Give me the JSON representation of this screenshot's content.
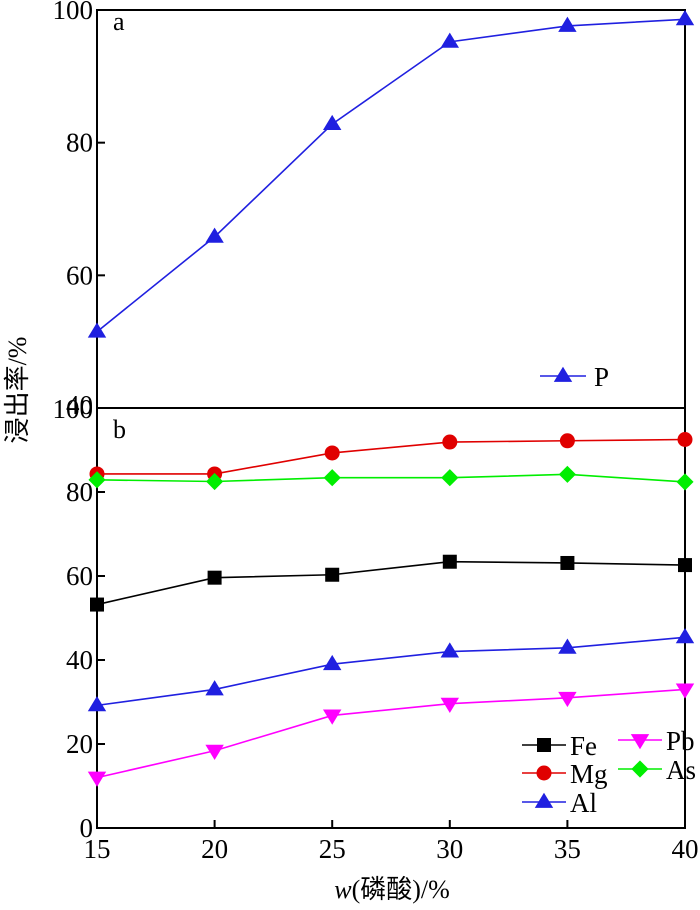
{
  "chart_data": {
    "type": "line",
    "ylabel": "浸出率/%",
    "xlabel_italic": "w",
    "xlabel_rest": "(磷酸)/%",
    "x": [
      15,
      20,
      25,
      30,
      35,
      40
    ],
    "x_ticks": [
      "15",
      "20",
      "25",
      "30",
      "35",
      "40"
    ],
    "xlim": [
      15,
      40
    ],
    "panels": [
      {
        "id": "a",
        "label": "a",
        "ylim": [
          40,
          100
        ],
        "y_ticks": [
          "40",
          "60",
          "80",
          "100"
        ],
        "legend_position": "bottom-right",
        "series": [
          {
            "name": "P",
            "color": "#2020e0",
            "marker": "triangle-up",
            "values": [
              51.5,
              65.8,
              82.8,
              95.2,
              97.6,
              98.6
            ]
          }
        ]
      },
      {
        "id": "b",
        "label": "b",
        "ylim": [
          0,
          100
        ],
        "y_ticks": [
          "0",
          "20",
          "40",
          "60",
          "80",
          "100"
        ],
        "legend_position": "bottom-right",
        "series": [
          {
            "name": "Fe",
            "color": "#000000",
            "marker": "square",
            "values": [
              53.2,
              59.6,
              60.3,
              63.4,
              63.1,
              62.6
            ]
          },
          {
            "name": "Mg",
            "color": "#e00000",
            "marker": "circle",
            "values": [
              84.3,
              84.3,
              89.3,
              91.9,
              92.2,
              92.5
            ]
          },
          {
            "name": "Al",
            "color": "#2020e0",
            "marker": "triangle-up",
            "values": [
              29.2,
              33.0,
              39.0,
              42.0,
              42.9,
              45.4
            ]
          },
          {
            "name": "Pb",
            "color": "#ff00ff",
            "marker": "triangle-down",
            "values": [
              12.0,
              18.4,
              26.8,
              29.6,
              31.0,
              33.0
            ]
          },
          {
            "name": "As",
            "color": "#00ee00",
            "marker": "diamond",
            "values": [
              82.9,
              82.5,
              83.4,
              83.4,
              84.2,
              82.4
            ]
          }
        ]
      }
    ]
  }
}
